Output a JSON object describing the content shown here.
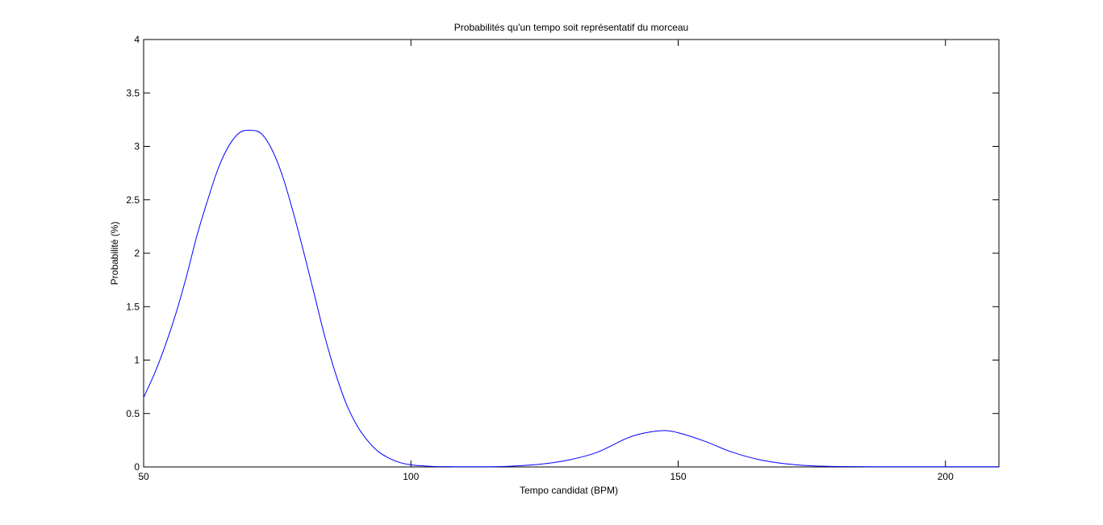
{
  "chart_data": {
    "type": "line",
    "title": "Probabilités qu'un tempo soit représentatif du morceau",
    "xlabel": "Tempo candidat (BPM)",
    "ylabel": "Probabilité (%)",
    "xlim": [
      50,
      210
    ],
    "ylim": [
      0,
      4
    ],
    "xticks": [
      50,
      100,
      150,
      200
    ],
    "yticks": [
      0,
      0.5,
      1,
      1.5,
      2,
      2.5,
      3,
      3.5,
      4
    ],
    "xtick_labels": [
      "50",
      "100",
      "150",
      "200"
    ],
    "ytick_labels": [
      "0",
      "0.5",
      "1",
      "1.5",
      "2",
      "2.5",
      "3",
      "3.5",
      "4"
    ],
    "grid": false,
    "series": [
      {
        "color": "#0000ff",
        "x": [
          50,
          52,
          54,
          56,
          58,
          60,
          62,
          64,
          66,
          68,
          70,
          72,
          74,
          76,
          78,
          80,
          82,
          84,
          86,
          88,
          90,
          92,
          94,
          96,
          98,
          100,
          102,
          104,
          106,
          108,
          110,
          115,
          120,
          125,
          130,
          135,
          140,
          143,
          147,
          150,
          155,
          160,
          165,
          170,
          175,
          180,
          190,
          200,
          210
        ],
        "y": [
          0.65,
          0.87,
          1.13,
          1.43,
          1.78,
          2.17,
          2.5,
          2.8,
          3.01,
          3.13,
          3.15,
          3.12,
          2.97,
          2.72,
          2.38,
          2.0,
          1.6,
          1.2,
          0.86,
          0.58,
          0.38,
          0.24,
          0.14,
          0.08,
          0.04,
          0.02,
          0.01,
          0.005,
          0.003,
          0.002,
          0.002,
          0.002,
          0.01,
          0.03,
          0.07,
          0.14,
          0.26,
          0.31,
          0.34,
          0.32,
          0.24,
          0.14,
          0.07,
          0.03,
          0.01,
          0.004,
          0.002,
          0.002,
          0.002
        ]
      }
    ]
  }
}
